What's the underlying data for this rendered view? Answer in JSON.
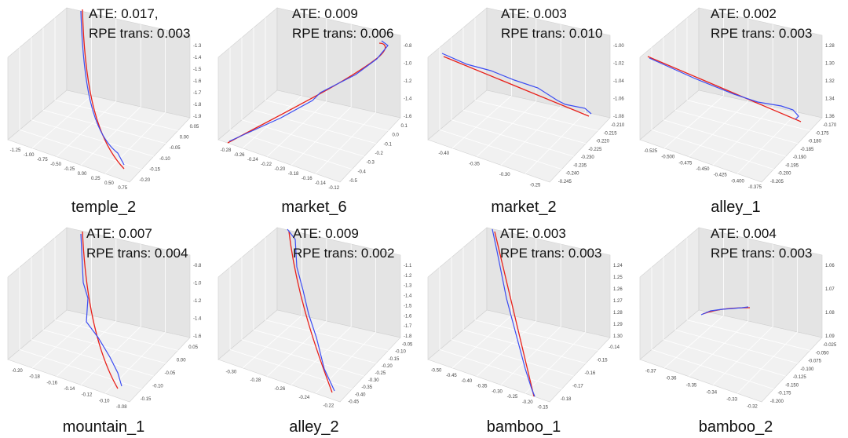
{
  "panels": [
    {
      "label": "temple_2",
      "ate": "ATE: 0.017,",
      "rpe": "RPE trans: 0.003",
      "zticks": [
        "-1.3",
        "-1.4",
        "-1.5",
        "-1.6",
        "-1.7",
        "-1.8",
        "-1.9"
      ],
      "xticks": [
        "-1.25",
        "-1.00",
        "-0.75",
        "-0.50",
        "-0.25",
        "0.00",
        "0.25",
        "0.50",
        "0.75"
      ],
      "yticks": [
        "-0.20",
        "-0.15",
        "-0.10",
        "-0.05",
        "0.00",
        "0.05"
      ]
    },
    {
      "label": "market_6",
      "ate": "ATE: 0.009",
      "rpe": "RPE trans: 0.006",
      "zticks": [
        "-0.8",
        "-1.0",
        "-1.2",
        "-1.4",
        "-1.6"
      ],
      "xticks": [
        "-0.28",
        "-0.26",
        "-0.24",
        "-0.22",
        "-0.20",
        "-0.18",
        "-0.16",
        "-0.14",
        "-0.12"
      ],
      "yticks": [
        "-0.5",
        "-0.4",
        "-0.3",
        "-0.2",
        "-0.1",
        "0.0",
        "0.1"
      ]
    },
    {
      "label": "market_2",
      "ate": "ATE: 0.003",
      "rpe": "RPE trans: 0.010",
      "zticks": [
        "-1.00",
        "-1.02",
        "-1.04",
        "-1.06",
        "-1.08"
      ],
      "xticks": [
        "-0.40",
        "-0.35",
        "-0.30",
        "-0.25"
      ],
      "yticks": [
        "-0.245",
        "-0.240",
        "-0.235",
        "-0.230",
        "-0.225",
        "-0.220",
        "-0.215",
        "-0.210"
      ]
    },
    {
      "label": "alley_1",
      "ate": "ATE: 0.002",
      "rpe": "RPE trans: 0.003",
      "zticks": [
        "1.28",
        "1.30",
        "1.32",
        "1.34",
        "1.36"
      ],
      "xticks": [
        "-0.525",
        "-0.500",
        "-0.475",
        "-0.450",
        "-0.425",
        "-0.400",
        "-0.375"
      ],
      "yticks": [
        "-0.205",
        "-0.200",
        "-0.195",
        "-0.190",
        "-0.185",
        "-0.180",
        "-0.175",
        "-0.170"
      ]
    },
    {
      "label": "mountain_1",
      "ate": "ATE: 0.007",
      "rpe": "RPE trans: 0.004",
      "zticks": [
        "-0.8",
        "-1.0",
        "-1.2",
        "-1.4",
        "-1.6"
      ],
      "xticks": [
        "-0.20",
        "-0.18",
        "-0.16",
        "-0.14",
        "-0.12",
        "-0.10",
        "-0.08"
      ],
      "yticks": [
        "-0.15",
        "-0.10",
        "-0.05",
        "0.00",
        "0.05"
      ]
    },
    {
      "label": "alley_2",
      "ate": "ATE: 0.009",
      "rpe": "RPE trans: 0.002",
      "zticks": [
        "-1.1",
        "-1.2",
        "-1.3",
        "-1.4",
        "-1.5",
        "-1.6",
        "-1.7",
        "-1.8"
      ],
      "xticks": [
        "-0.30",
        "-0.28",
        "-0.26",
        "-0.24",
        "-0.22"
      ],
      "yticks": [
        "-0.45",
        "-0.40",
        "-0.35",
        "-0.30",
        "-0.25",
        "-0.20",
        "-0.15",
        "-0.10",
        "-0.05"
      ]
    },
    {
      "label": "bamboo_1",
      "ate": "ATE: 0.003",
      "rpe": "RPE trans: 0.003",
      "zticks": [
        "1.24",
        "1.25",
        "1.26",
        "1.27",
        "1.28",
        "1.29",
        "1.30"
      ],
      "xticks": [
        "-0.50",
        "-0.45",
        "-0.40",
        "-0.35",
        "-0.30",
        "-0.25",
        "-0.20",
        "-0.15"
      ],
      "yticks": [
        "-0.18",
        "-0.17",
        "-0.16",
        "-0.15",
        "-0.14"
      ]
    },
    {
      "label": "bamboo_2",
      "ate": "ATE: 0.004",
      "rpe": "RPE trans: 0.003",
      "zticks": [
        "1.06",
        "1.07",
        "1.08",
        "1.09"
      ],
      "xticks": [
        "-0.37",
        "-0.36",
        "-0.35",
        "-0.34",
        "-0.33",
        "-0.32"
      ],
      "yticks": [
        "-0.200",
        "-0.175",
        "-0.150",
        "-0.125",
        "-0.100",
        "-0.075",
        "-0.050",
        "-0.025"
      ]
    }
  ]
}
